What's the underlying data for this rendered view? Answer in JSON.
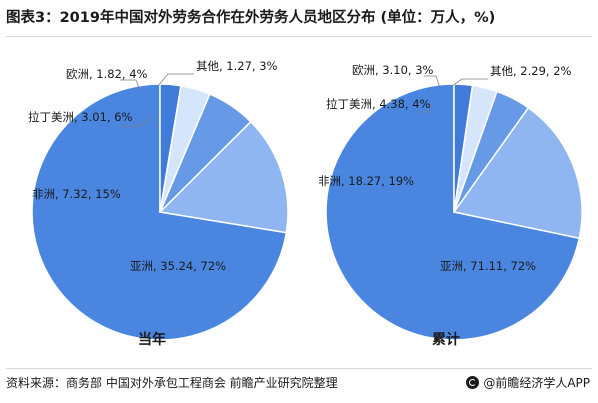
{
  "title": "图表3：2019年中国对外劳务合作在外劳务人员地区分布 (单位：万人，%)",
  "source": "资料来源：商务部 中国对外承包工程商会 前瞻产业研究院整理",
  "brand": "@前瞻经济学人APP",
  "colors": {
    "asia": "#4a86e0",
    "africa": "#8fb6f0",
    "latin_america": "#6699e6",
    "europe": "#d5e5fb",
    "other": "#3f7bd8",
    "label_text": "#1a1a1a",
    "leader_line": "#7f7f7f"
  },
  "chart_data": [
    {
      "type": "pie",
      "title": "当年",
      "slices": [
        {
          "label": "亚洲",
          "value": 35.24,
          "percent": 72,
          "text": "亚洲, 35.24, 72%",
          "color_key": "asia"
        },
        {
          "label": "非洲",
          "value": 7.32,
          "percent": 15,
          "text": "非洲, 7.32, 15%",
          "color_key": "africa"
        },
        {
          "label": "拉丁美洲",
          "value": 3.01,
          "percent": 6,
          "text": "拉丁美洲, 3.01, 6%",
          "color_key": "latin_america"
        },
        {
          "label": "欧洲",
          "value": 1.82,
          "percent": 4,
          "text": "欧洲, 1.82, 4%",
          "color_key": "europe"
        },
        {
          "label": "其他",
          "value": 1.27,
          "percent": 3,
          "text": "其他, 1.27, 3%",
          "color_key": "other"
        }
      ]
    },
    {
      "type": "pie",
      "title": "累计",
      "slices": [
        {
          "label": "亚洲",
          "value": 71.11,
          "percent": 72,
          "text": "亚洲, 71.11, 72%",
          "color_key": "asia"
        },
        {
          "label": "非洲",
          "value": 18.27,
          "percent": 19,
          "text": "非洲, 18.27, 19%",
          "color_key": "africa"
        },
        {
          "label": "拉丁美洲",
          "value": 4.38,
          "percent": 4,
          "text": "拉丁美洲, 4.38, 4%",
          "color_key": "latin_america"
        },
        {
          "label": "欧洲",
          "value": 3.1,
          "percent": 3,
          "text": "欧洲, 3.10, 3%",
          "color_key": "europe"
        },
        {
          "label": "其他",
          "value": 2.29,
          "percent": 2,
          "text": "其他, 2.29, 2%",
          "color_key": "other"
        }
      ]
    }
  ]
}
